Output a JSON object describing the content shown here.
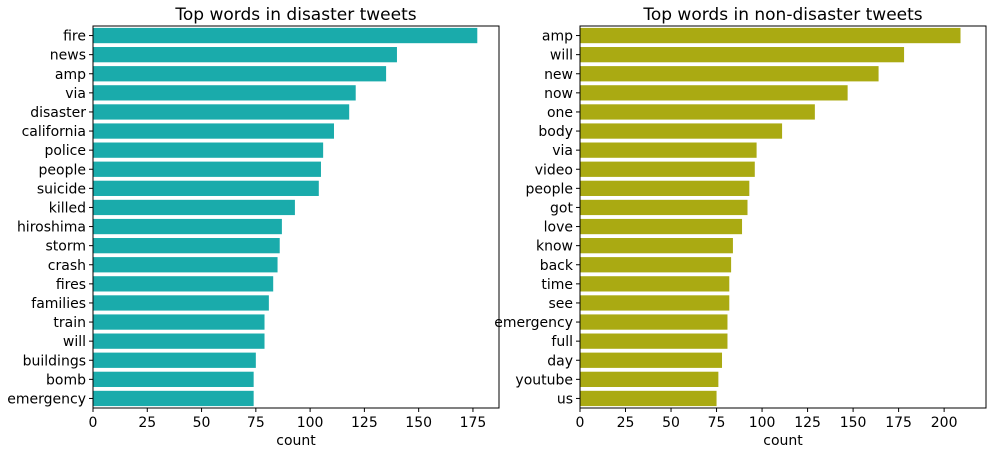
{
  "chart_data": [
    {
      "type": "bar",
      "orientation": "horizontal",
      "title": "Top words in disaster tweets",
      "xlabel": "count",
      "ylabel": "",
      "color": "#1aabab",
      "xlim": [
        0,
        187
      ],
      "xticks": [
        0,
        25,
        50,
        75,
        100,
        125,
        150,
        175
      ],
      "categories": [
        "fire",
        "news",
        "amp",
        "via",
        "disaster",
        "california",
        "police",
        "people",
        "suicide",
        "killed",
        "hiroshima",
        "storm",
        "crash",
        "fires",
        "families",
        "train",
        "will",
        "buildings",
        "bomb",
        "emergency"
      ],
      "values": [
        177,
        140,
        135,
        121,
        118,
        111,
        106,
        105,
        104,
        93,
        87,
        86,
        85,
        83,
        81,
        79,
        79,
        75,
        74,
        74
      ]
    },
    {
      "type": "bar",
      "orientation": "horizontal",
      "title": "Top words in non-disaster tweets",
      "xlabel": "count",
      "ylabel": "",
      "color": "#aaaa12",
      "xlim": [
        0,
        223
      ],
      "xticks": [
        0,
        25,
        50,
        75,
        100,
        125,
        150,
        175,
        200
      ],
      "categories": [
        "amp",
        "will",
        "new",
        "now",
        "one",
        "body",
        "via",
        "video",
        "people",
        "got",
        "love",
        "know",
        "back",
        "time",
        "see",
        "emergency",
        "full",
        "day",
        "youtube",
        "us"
      ],
      "values": [
        209,
        178,
        164,
        147,
        129,
        111,
        97,
        96,
        93,
        92,
        89,
        84,
        83,
        82,
        82,
        81,
        81,
        78,
        76,
        75
      ]
    }
  ]
}
